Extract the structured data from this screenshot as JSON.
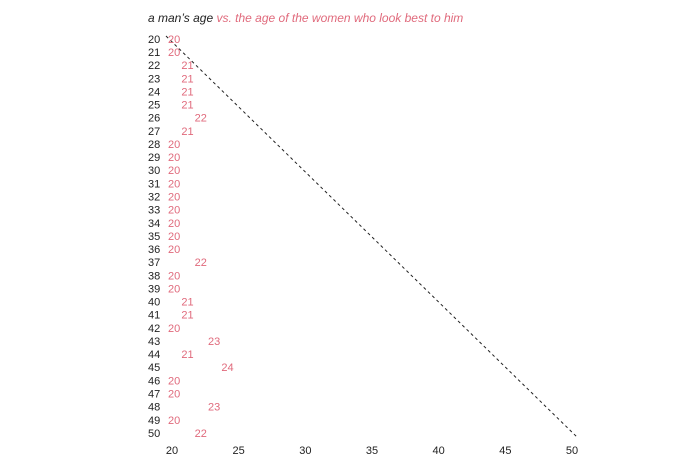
{
  "chart_data": {
    "type": "scatter",
    "title": "a man’s age",
    "subtitle": "vs. the age of the women who look best to him",
    "categories": [
      20,
      21,
      22,
      23,
      24,
      25,
      26,
      27,
      28,
      29,
      30,
      31,
      32,
      33,
      34,
      35,
      36,
      37,
      38,
      39,
      40,
      41,
      42,
      43,
      44,
      45,
      46,
      47,
      48,
      49,
      50
    ],
    "values": [
      20,
      20,
      21,
      21,
      21,
      21,
      22,
      21,
      20,
      20,
      20,
      20,
      20,
      20,
      20,
      20,
      20,
      22,
      20,
      20,
      21,
      21,
      20,
      23,
      21,
      24,
      20,
      20,
      23,
      20,
      22
    ],
    "color": "#e06a7c",
    "xlim": [
      20,
      50
    ],
    "xticks": [
      20,
      25,
      30,
      35,
      40,
      45,
      50
    ]
  }
}
